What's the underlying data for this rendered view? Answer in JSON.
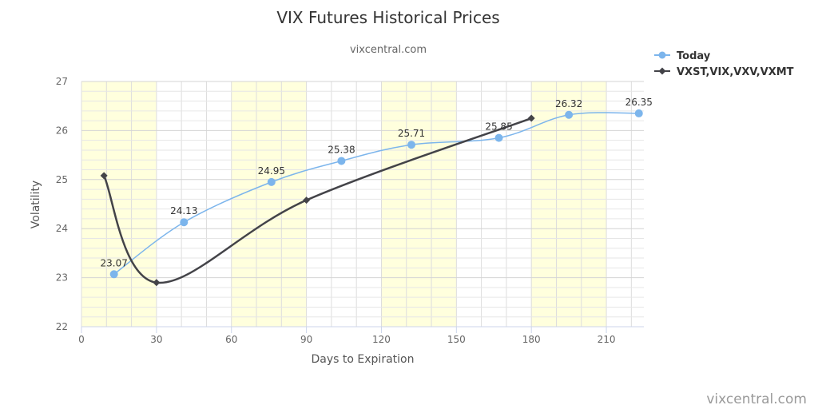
{
  "chart_data": {
    "type": "line",
    "title": "VIX Futures Historical Prices",
    "subtitle": "vixcentral.com",
    "xlabel": "Days to Expiration",
    "ylabel": "Volatility",
    "xlim": [
      0,
      225
    ],
    "ylim": [
      22,
      27
    ],
    "x_ticks": [
      0,
      30,
      60,
      90,
      120,
      150,
      180,
      210
    ],
    "y_ticks": [
      22,
      23,
      24,
      25,
      26,
      27
    ],
    "shaded_bands": [
      [
        0,
        30
      ],
      [
        60,
        90
      ],
      [
        120,
        150
      ],
      [
        180,
        210
      ]
    ],
    "band_color": "#ffffdd",
    "grid": true,
    "legend_position": "top-right",
    "series": [
      {
        "name": "Today",
        "color": "#7cb5ec",
        "marker": "circle",
        "x": [
          13,
          41,
          76,
          104,
          132,
          167,
          195,
          223
        ],
        "values": [
          23.07,
          24.13,
          24.95,
          25.38,
          25.71,
          25.85,
          26.32,
          26.35
        ],
        "labels": [
          "23.07",
          "24.13",
          "24.95",
          "25.38",
          "25.71",
          "25.85",
          "26.32",
          "26.35"
        ]
      },
      {
        "name": "VXST,VIX,VXV,VXMT",
        "color": "#434348",
        "marker": "diamond",
        "x": [
          9,
          30,
          90,
          180
        ],
        "values": [
          25.08,
          22.9,
          24.58,
          26.25
        ]
      }
    ]
  },
  "credit": "vixcentral.com"
}
